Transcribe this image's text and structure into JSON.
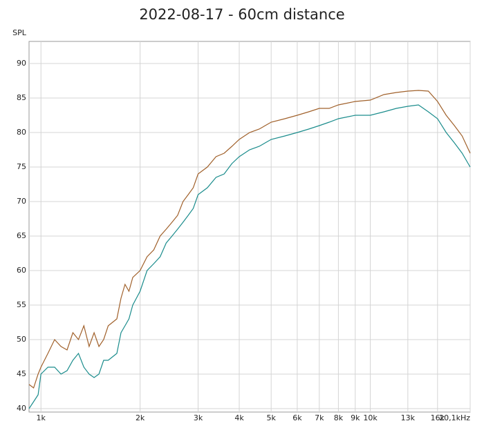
{
  "chart_data": {
    "type": "line",
    "title": "2022-08-17 - 60cm distance",
    "y_label": "SPL",
    "x_scale": "log",
    "x": [
      920,
      950,
      980,
      1000,
      1050,
      1100,
      1150,
      1200,
      1250,
      1300,
      1350,
      1400,
      1450,
      1500,
      1550,
      1600,
      1700,
      1750,
      1800,
      1850,
      1900,
      2000,
      2100,
      2200,
      2300,
      2400,
      2500,
      2600,
      2700,
      2800,
      2900,
      3000,
      3200,
      3400,
      3600,
      3800,
      4000,
      4300,
      4600,
      5000,
      5500,
      6000,
      6500,
      7000,
      7500,
      8000,
      9000,
      10000,
      11000,
      12000,
      13000,
      14000,
      15000,
      16000,
      17000,
      18000,
      19000,
      20100
    ],
    "series": [
      {
        "color": "#a0602a",
        "values": [
          43.5,
          43,
          45,
          46,
          48,
          50,
          49,
          48.5,
          51,
          50,
          52,
          49,
          51,
          49,
          50,
          52,
          53,
          56,
          58,
          57,
          59,
          60,
          62,
          63,
          65,
          66,
          67,
          68,
          70,
          71,
          72,
          74,
          75,
          76.5,
          77,
          78,
          79,
          80,
          80.5,
          81.5,
          82,
          82.5,
          83,
          83.5,
          83.5,
          84,
          84.5,
          84.7,
          85.5,
          85.8,
          86,
          86.1,
          86,
          84.5,
          82.5,
          81,
          79.5,
          77
        ]
      },
      {
        "color": "#1a8c8c",
        "values": [
          40,
          41,
          42,
          45,
          46,
          46,
          45,
          45.5,
          47,
          48,
          46,
          45,
          44.5,
          45,
          47,
          47,
          48,
          51,
          52,
          53,
          55,
          57,
          60,
          61,
          62,
          64,
          65,
          66,
          67,
          68,
          69,
          71,
          72,
          73.5,
          74,
          75.5,
          76.5,
          77.5,
          78,
          79,
          79.5,
          80,
          80.5,
          81,
          81.5,
          82,
          82.5,
          82.5,
          83,
          83.5,
          83.8,
          84,
          83,
          82,
          80,
          78.5,
          77,
          75
        ]
      }
    ],
    "xlim": [
      920,
      20100
    ],
    "ylim": [
      40,
      93.2
    ],
    "xticks": [
      {
        "value": 1000,
        "label": "1k"
      },
      {
        "value": 2000,
        "label": "2k"
      },
      {
        "value": 3000,
        "label": "3k"
      },
      {
        "value": 4000,
        "label": "4k"
      },
      {
        "value": 5000,
        "label": "5k"
      },
      {
        "value": 6000,
        "label": "6k"
      },
      {
        "value": 7000,
        "label": "7k"
      },
      {
        "value": 8000,
        "label": "8k"
      },
      {
        "value": 9000,
        "label": "9k"
      },
      {
        "value": 10000,
        "label": "10k"
      },
      {
        "value": 13000,
        "label": "13k"
      },
      {
        "value": 16000,
        "label": "16k"
      },
      {
        "value": 20100,
        "label": "20,1kHz"
      }
    ],
    "yticks": [
      40,
      45,
      50,
      55,
      60,
      65,
      70,
      75,
      80,
      85,
      90
    ],
    "grid": true
  }
}
